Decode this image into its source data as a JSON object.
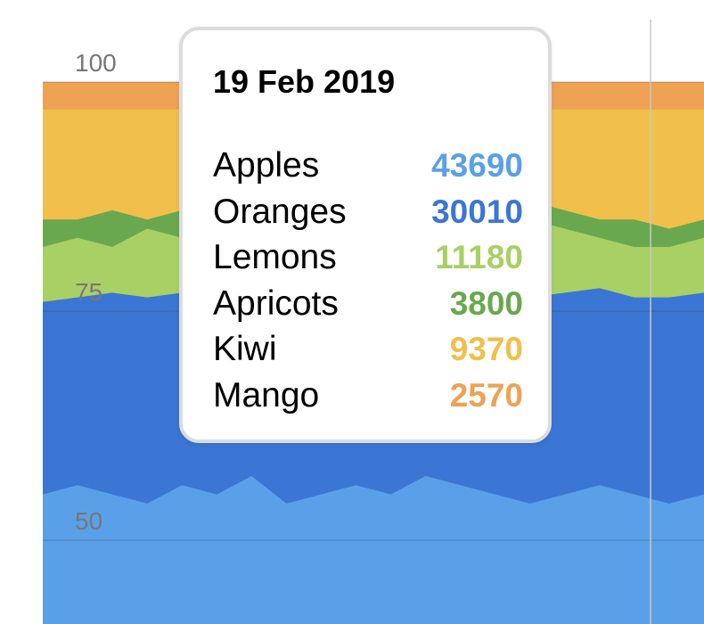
{
  "chart_data": {
    "type": "area",
    "stacked": true,
    "normalized_percent": true,
    "y_ticks": [
      "100",
      "75",
      "50"
    ],
    "ylim": [
      50,
      100
    ],
    "grid": true,
    "series": [
      {
        "name": "Apples",
        "color": "#5aa0e8"
      },
      {
        "name": "Oranges",
        "color": "#3b76d4"
      },
      {
        "name": "Lemons",
        "color": "#a8d064"
      },
      {
        "name": "Apricots",
        "color": "#6aa84f"
      },
      {
        "name": "Kiwi",
        "color": "#f0bf4c"
      },
      {
        "name": "Mango",
        "color": "#eea253"
      }
    ],
    "x_approx_index": [
      0,
      1,
      2,
      3,
      4,
      5,
      6,
      7,
      8,
      9,
      10,
      11,
      12,
      13,
      14,
      15,
      16,
      17,
      18,
      19
    ],
    "band_tops": {
      "Apples": [
        55,
        56,
        55,
        54,
        56,
        55,
        57,
        54,
        55,
        56,
        55,
        57,
        56,
        55,
        54,
        55,
        56,
        55,
        54,
        55
      ],
      "Oranges": [
        76,
        76.5,
        77,
        76.5,
        77,
        77,
        76,
        76,
        77,
        77,
        76.5,
        76,
        76.5,
        77,
        76.5,
        77,
        77.5,
        76.5,
        76.5,
        77
      ],
      "Lemons": [
        82,
        83,
        82,
        84,
        83,
        85,
        84,
        83,
        84,
        84,
        83,
        84,
        83,
        84,
        85,
        84,
        83,
        82,
        82,
        83
      ],
      "Apricots": [
        85,
        85,
        86,
        85,
        86,
        87,
        86,
        85,
        86,
        86,
        85,
        86,
        85,
        86,
        87,
        86,
        85,
        85,
        84,
        85
      ],
      "Kiwi": [
        97,
        97,
        97,
        97,
        97,
        97,
        97,
        97,
        97,
        97,
        97,
        97,
        97,
        97,
        97,
        97,
        97,
        97,
        97,
        97
      ],
      "Mango": [
        100,
        100,
        100,
        100,
        100,
        100,
        100,
        100,
        100,
        100,
        100,
        100,
        100,
        100,
        100,
        100,
        100,
        100,
        100,
        100
      ]
    },
    "tooltip": {
      "date": "19 Feb 2019",
      "rows": [
        {
          "name": "Apples",
          "value": "43690",
          "color": "#5aa0e8"
        },
        {
          "name": "Oranges",
          "value": "30010",
          "color": "#3b76d4"
        },
        {
          "name": "Lemons",
          "value": "11180",
          "color": "#a8d064"
        },
        {
          "name": "Apricots",
          "value": "3800",
          "color": "#6aa84f"
        },
        {
          "name": "Kiwi",
          "value": "9370",
          "color": "#f0bf4c"
        },
        {
          "name": "Mango",
          "value": "2570",
          "color": "#eea253"
        }
      ]
    }
  }
}
